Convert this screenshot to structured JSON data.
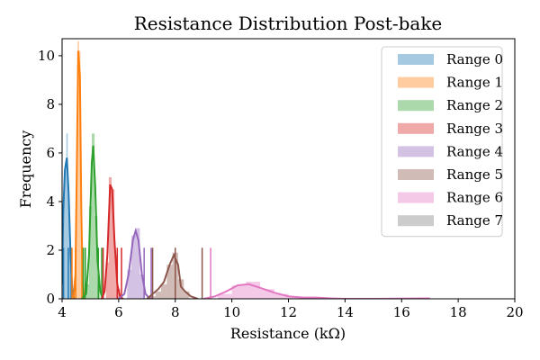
{
  "chart_data": {
    "type": "histogram",
    "title": "Resistance Distribution Post-bake",
    "xlabel": "Resistance (kΩ)",
    "ylabel": "Frequency",
    "xlim": [
      4,
      20
    ],
    "ylim": [
      0,
      10.7
    ],
    "xticks": [
      4,
      6,
      8,
      10,
      12,
      14,
      16,
      18,
      20
    ],
    "yticks": [
      0,
      2,
      4,
      6,
      8,
      10
    ],
    "grid": false,
    "legend_position": "top-right",
    "series": [
      {
        "name": "Range 0",
        "color": "#1f77b4",
        "bars": [
          [
            4.0,
            4.05,
            3.0
          ],
          [
            4.05,
            4.1,
            4.2
          ],
          [
            4.1,
            4.15,
            5.6
          ],
          [
            4.15,
            4.2,
            6.8
          ],
          [
            4.2,
            4.25,
            4.4
          ],
          [
            4.25,
            4.3,
            2.2
          ],
          [
            4.3,
            4.35,
            0.6
          ]
        ],
        "kde": [
          [
            4.0,
            0.6
          ],
          [
            4.04,
            3.6
          ],
          [
            4.1,
            5.3
          ],
          [
            4.17,
            5.8
          ],
          [
            4.23,
            4.4
          ],
          [
            4.3,
            1.8
          ],
          [
            4.36,
            0.4
          ],
          [
            4.42,
            0.0
          ]
        ],
        "rug": [
          4.05,
          4.22,
          4.32
        ]
      },
      {
        "name": "Range 1",
        "color": "#ff7f0e",
        "bars": [
          [
            4.45,
            4.5,
            1.5
          ],
          [
            4.5,
            4.55,
            6.0
          ],
          [
            4.55,
            4.6,
            10.6
          ],
          [
            4.6,
            4.65,
            10.2
          ],
          [
            4.65,
            4.7,
            4.0
          ],
          [
            4.7,
            4.75,
            0.8
          ]
        ],
        "kde": [
          [
            4.4,
            0.0
          ],
          [
            4.47,
            1.0
          ],
          [
            4.52,
            5.2
          ],
          [
            4.57,
            10.2
          ],
          [
            4.63,
            9.2
          ],
          [
            4.68,
            3.5
          ],
          [
            4.73,
            0.8
          ],
          [
            4.78,
            0.0
          ]
        ],
        "rug": [
          4.35,
          4.48,
          4.7
        ]
      },
      {
        "name": "Range 2",
        "color": "#2ca02c",
        "bars": [
          [
            4.85,
            4.95,
            0.6
          ],
          [
            4.95,
            5.05,
            3.8
          ],
          [
            5.05,
            5.15,
            6.8
          ],
          [
            5.15,
            5.25,
            3.4
          ],
          [
            5.25,
            5.35,
            0.6
          ]
        ],
        "kde": [
          [
            4.7,
            0.0
          ],
          [
            4.85,
            0.2
          ],
          [
            4.95,
            1.8
          ],
          [
            5.05,
            5.6
          ],
          [
            5.1,
            6.3
          ],
          [
            5.17,
            4.6
          ],
          [
            5.25,
            1.6
          ],
          [
            5.35,
            0.3
          ],
          [
            5.45,
            0.0
          ]
        ],
        "rug": [
          4.75,
          4.82,
          5.28,
          5.4
        ]
      },
      {
        "name": "Range 3",
        "color": "#d62728",
        "bars": [
          [
            5.55,
            5.65,
            1.5
          ],
          [
            5.65,
            5.75,
            5.0
          ],
          [
            5.75,
            5.85,
            4.5
          ],
          [
            5.85,
            5.95,
            1.8
          ],
          [
            5.95,
            6.05,
            0.4
          ]
        ],
        "kde": [
          [
            5.4,
            0.0
          ],
          [
            5.5,
            0.3
          ],
          [
            5.6,
            1.8
          ],
          [
            5.7,
            4.7
          ],
          [
            5.77,
            4.5
          ],
          [
            5.85,
            2.4
          ],
          [
            5.95,
            0.6
          ],
          [
            6.05,
            0.1
          ],
          [
            6.15,
            0.0
          ]
        ],
        "rug": [
          5.45,
          5.95,
          6.1
        ]
      },
      {
        "name": "Range 4",
        "color": "#9467bd",
        "bars": [
          [
            6.3,
            6.45,
            1.2
          ],
          [
            6.45,
            6.6,
            2.6
          ],
          [
            6.6,
            6.75,
            2.9
          ],
          [
            6.75,
            6.9,
            1.0
          ]
        ],
        "kde": [
          [
            6.0,
            0.0
          ],
          [
            6.2,
            0.2
          ],
          [
            6.35,
            1.0
          ],
          [
            6.5,
            2.4
          ],
          [
            6.6,
            2.8
          ],
          [
            6.7,
            2.4
          ],
          [
            6.82,
            1.0
          ],
          [
            6.95,
            0.2
          ],
          [
            7.1,
            0.0
          ]
        ],
        "rug": [
          6.9,
          7.15
        ]
      },
      {
        "name": "Range 5",
        "color": "#8c564b",
        "bars": [
          [
            7.1,
            7.3,
            0.1
          ],
          [
            7.3,
            7.5,
            0.3
          ],
          [
            7.5,
            7.7,
            0.6
          ],
          [
            7.7,
            7.9,
            1.4
          ],
          [
            7.9,
            8.1,
            1.9
          ],
          [
            8.1,
            8.3,
            0.8
          ],
          [
            8.3,
            8.5,
            0.3
          ]
        ],
        "kde": [
          [
            7.0,
            0.0
          ],
          [
            7.2,
            0.2
          ],
          [
            7.4,
            0.4
          ],
          [
            7.6,
            0.7
          ],
          [
            7.8,
            1.4
          ],
          [
            7.95,
            1.8
          ],
          [
            8.1,
            1.4
          ],
          [
            8.2,
            0.5
          ],
          [
            8.35,
            0.3
          ],
          [
            8.55,
            0.1
          ],
          [
            8.8,
            0.0
          ]
        ],
        "rug": [
          7.2,
          8.0,
          8.95
        ]
      },
      {
        "name": "Range 6",
        "color": "#e377c2",
        "bars": [
          [
            9.5,
            10.0,
            0.2
          ],
          [
            10.0,
            10.5,
            0.55
          ],
          [
            10.5,
            11.0,
            0.7
          ],
          [
            11.0,
            11.5,
            0.4
          ],
          [
            11.5,
            12.0,
            0.2
          ],
          [
            12.0,
            12.5,
            0.1
          ],
          [
            12.5,
            13.0,
            0.05
          ]
        ],
        "kde": [
          [
            9.0,
            0.0
          ],
          [
            9.4,
            0.1
          ],
          [
            9.8,
            0.3
          ],
          [
            10.2,
            0.55
          ],
          [
            10.6,
            0.6
          ],
          [
            11.0,
            0.45
          ],
          [
            11.5,
            0.25
          ],
          [
            12.0,
            0.1
          ],
          [
            12.5,
            0.05
          ],
          [
            13.0,
            0.05
          ],
          [
            13.5,
            0.02
          ],
          [
            14.0,
            0.0
          ],
          [
            15.0,
            0.0
          ],
          [
            17.0,
            0.02
          ]
        ],
        "rug": [
          9.25
        ]
      },
      {
        "name": "Range 7",
        "color": "#7f7f7f",
        "bars": [],
        "kde": [],
        "rug": []
      }
    ]
  }
}
